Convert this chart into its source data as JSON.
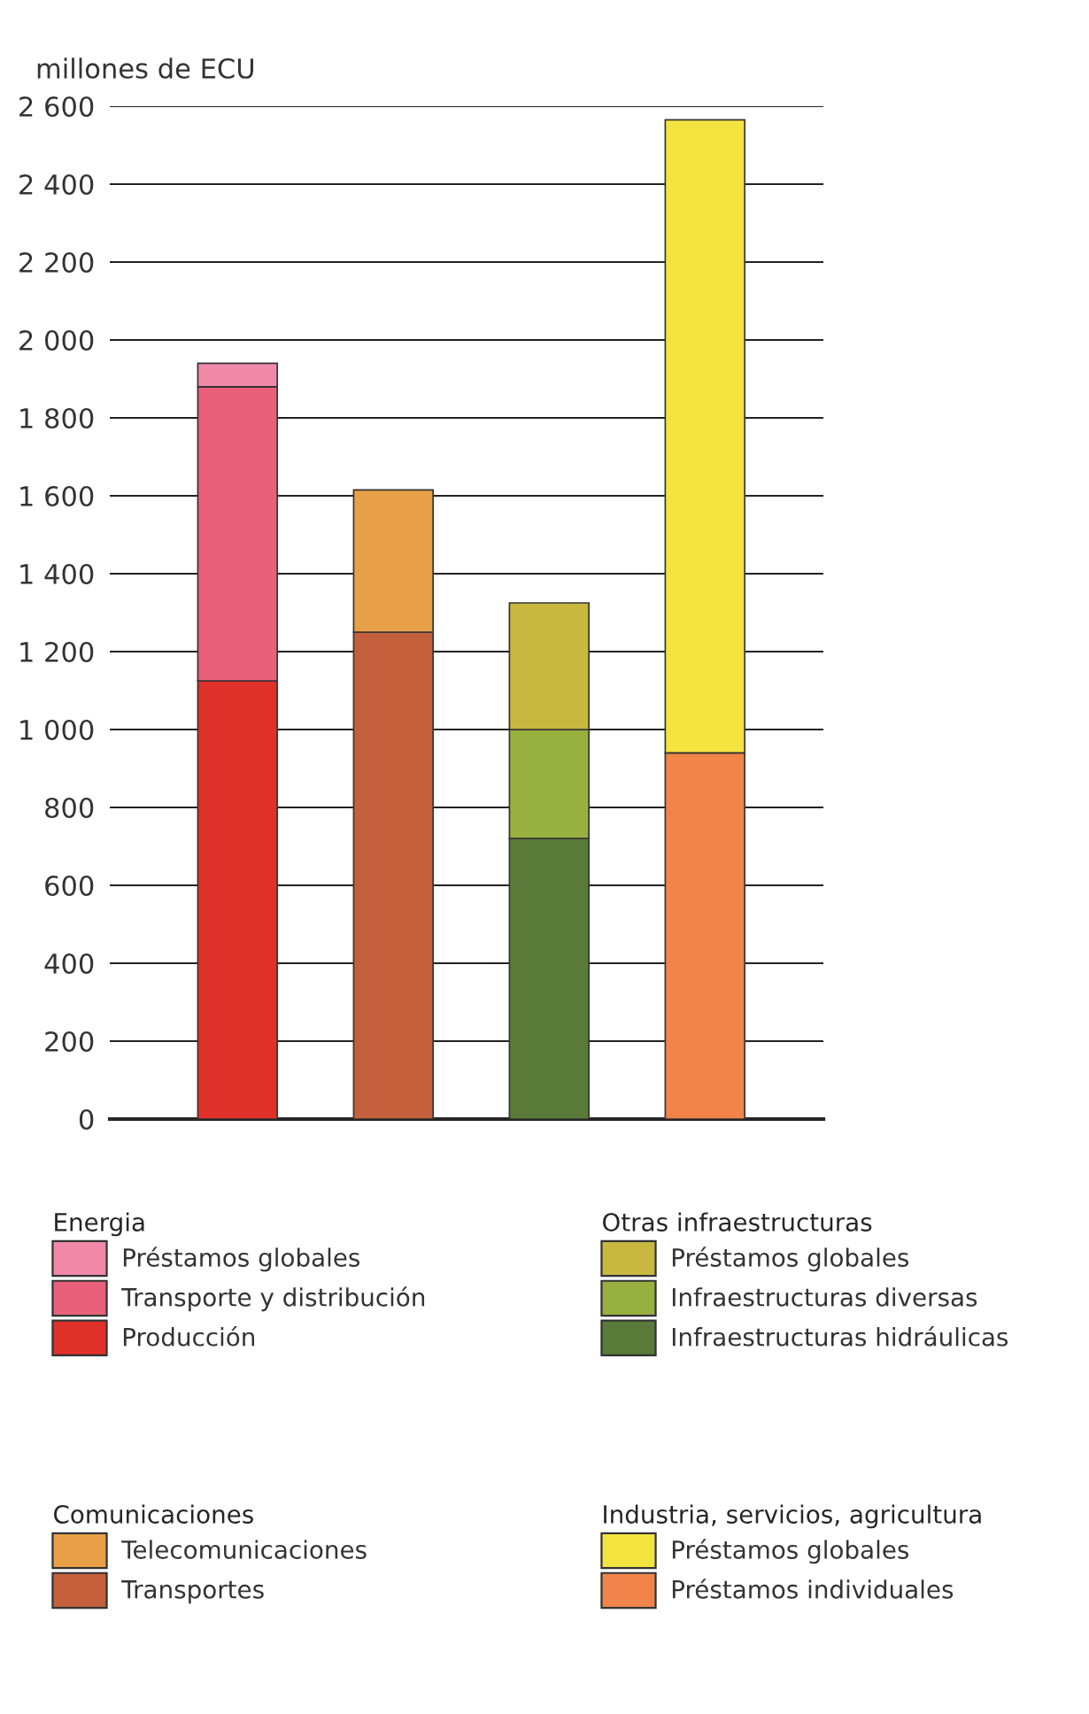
{
  "chart_data": {
    "type": "bar",
    "stacked": true,
    "ylabel": "millones de ECU",
    "categories": [
      null,
      null,
      null,
      null
    ],
    "series": [
      {
        "name": "Producción",
        "color": "#e0302a",
        "values": [
          1125,
          null,
          null,
          null
        ]
      },
      {
        "name": "Transporte y distribución",
        "color": "#e8607a",
        "values": [
          755,
          null,
          null,
          null
        ]
      },
      {
        "name": "Préstamos globales",
        "color": "#f08aa8",
        "values": [
          60,
          null,
          null,
          null
        ]
      },
      {
        "name": "Transportes",
        "color": "#c4603c",
        "values": [
          null,
          1250,
          null,
          null
        ]
      },
      {
        "name": "Telecomunicaciones",
        "color": "#e8a048",
        "values": [
          null,
          365,
          null,
          null
        ]
      },
      {
        "name": "Infraestructuras hidráulicas",
        "color": "#5a7a3a",
        "values": [
          null,
          null,
          720,
          null
        ]
      },
      {
        "name": "Infraestructuras diversas",
        "color": "#98b040",
        "values": [
          null,
          null,
          280,
          null
        ]
      },
      {
        "name": "Préstamos globales",
        "color": "#c8b840",
        "values": [
          null,
          null,
          325,
          null
        ]
      },
      {
        "name": "Préstamos individuales",
        "color": "#f0844a",
        "values": [
          null,
          null,
          null,
          940
        ]
      },
      {
        "name": "Préstamos globales",
        "color": "#f4e440",
        "values": [
          null,
          null,
          null,
          1625
        ]
      }
    ],
    "annotations": [
      "Energia",
      "Comunicaciones",
      "Otras infraestructuras",
      "Industria, servicios, agricultura"
    ],
    "ylim": [
      0,
      2600
    ],
    "yticks": [
      0,
      200,
      400,
      600,
      800,
      {
        "value": 1000,
        "label": "1 000"
      },
      {
        "value": 1200,
        "label": "1 200"
      },
      {
        "value": 1400,
        "label": "1 400"
      },
      {
        "value": 1600,
        "label": "1 600"
      },
      {
        "value": 1800,
        "label": "1 800"
      },
      {
        "value": 2000,
        "label": "2 000"
      },
      {
        "value": 2200,
        "label": "2 200"
      },
      {
        "value": 2400,
        "label": "2 400"
      },
      {
        "value": 2600,
        "label": "2 600"
      }
    ],
    "grid": "y",
    "legend": "bottom"
  }
}
